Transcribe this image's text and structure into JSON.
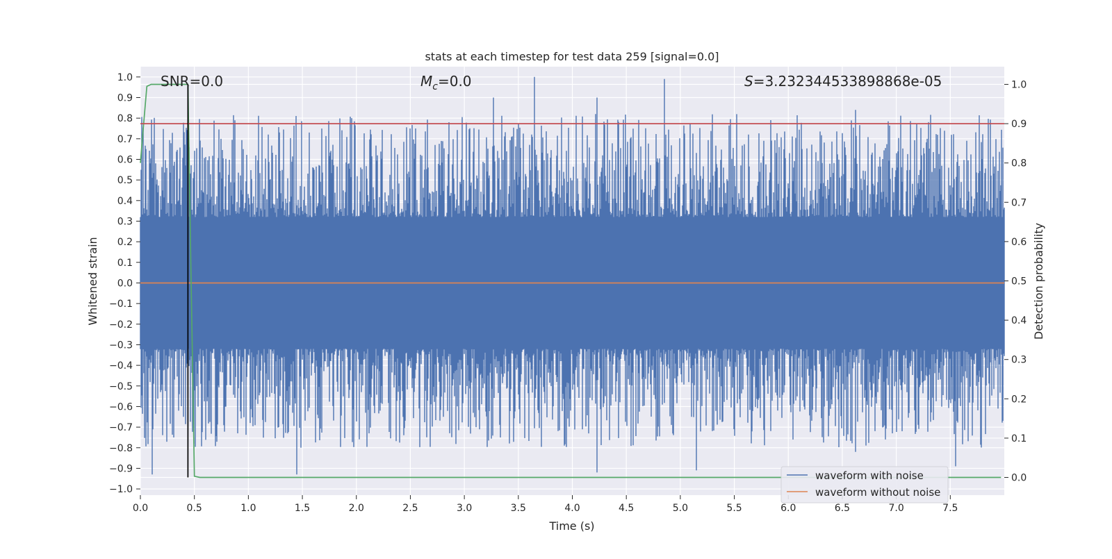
{
  "chart_data": {
    "type": "line",
    "title": "stats at each timestep for test data 259 [signal=0.0]",
    "xlabel": "Time (s)",
    "ylabel": "Whitened strain",
    "ylabel_right": "Detection probability",
    "xlim": [
      0.0,
      8.0
    ],
    "ylim": [
      -1.03,
      1.05
    ],
    "ylim_right": [
      -0.045,
      1.045
    ],
    "x_ticks": [
      "0.0",
      "0.5",
      "1.0",
      "1.5",
      "2.0",
      "2.5",
      "3.0",
      "3.5",
      "4.0",
      "4.5",
      "5.0",
      "5.5",
      "6.0",
      "6.5",
      "7.0",
      "7.5"
    ],
    "y_ticks": [
      "1.0",
      "0.9",
      "0.8",
      "0.7",
      "0.6",
      "0.5",
      "0.4",
      "0.3",
      "0.2",
      "0.1",
      "0.0",
      "−0.1",
      "−0.2",
      "−0.3",
      "−0.4",
      "−0.5",
      "−0.6",
      "−0.7",
      "−0.8",
      "−0.9",
      "−1.0"
    ],
    "y_ticks_right": [
      "1.0",
      "0.9",
      "0.8",
      "0.7",
      "0.6",
      "0.5",
      "0.4",
      "0.3",
      "0.2",
      "0.1",
      "0.0"
    ],
    "grid": true,
    "legend_position": "lower-right",
    "annotations": {
      "snr": "SNR=0.0",
      "mc_symbol": "M",
      "mc_subscript": "c",
      "mc_value": "=0.0",
      "s_symbol": "S",
      "s_value": "=3.232344533898868e-05"
    },
    "series": [
      {
        "name": "waveform with noise",
        "axis": "left",
        "color": "#4c72b0",
        "description_peaks": [
          {
            "x": 0.11,
            "y": -0.93
          },
          {
            "x": 1.45,
            "y": -0.93
          },
          {
            "x": 3.27,
            "y": 0.9
          },
          {
            "x": 3.65,
            "y": 1.0
          },
          {
            "x": 4.23,
            "y": 0.9
          },
          {
            "x": 4.23,
            "y": -0.92
          },
          {
            "x": 4.85,
            "y": 0.99
          },
          {
            "x": 5.15,
            "y": -0.91
          },
          {
            "x": 6.62,
            "y": 0.84
          },
          {
            "x": 6.62,
            "y": -0.82
          },
          {
            "x": 7.55,
            "y": -0.89
          }
        ]
      },
      {
        "name": "waveform without noise",
        "axis": "left",
        "color": "#dd8452",
        "x": [
          0.0,
          8.0
        ],
        "y": [
          0.0,
          0.0
        ]
      },
      {
        "axis": "right",
        "color": "#55a868",
        "x": [
          0.0,
          0.03,
          0.06,
          0.1,
          0.15,
          0.2,
          0.3,
          0.4,
          0.44,
          0.47,
          0.5,
          0.55,
          1.0,
          2.0,
          3.0,
          4.0,
          5.0,
          6.0,
          7.0,
          7.97
        ],
        "y": [
          0.8,
          0.9,
          0.995,
          1.0,
          1.0,
          1.0,
          1.0,
          1.0,
          1.0,
          0.5,
          0.003,
          0.0,
          0.0,
          0.0,
          0.0,
          0.0,
          0.0,
          0.0,
          0.0,
          0.0
        ]
      },
      {
        "axis": "right",
        "color": "#c44e52",
        "x": [
          0.0,
          8.0
        ],
        "y": [
          0.9,
          0.9
        ]
      },
      {
        "axis": "right",
        "color": "#000000",
        "x": [
          0.44,
          0.44
        ],
        "y": [
          0.0,
          1.0
        ]
      }
    ]
  }
}
